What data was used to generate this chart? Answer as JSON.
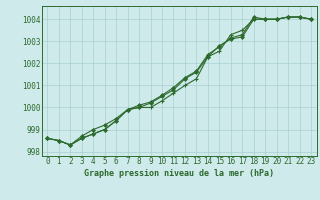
{
  "title": "Graphe pression niveau de la mer (hPa)",
  "background_color": "#ceeaea",
  "grid_color": "#aacfcf",
  "line_color": "#2d6a2d",
  "hours": [
    0,
    1,
    2,
    3,
    4,
    5,
    6,
    7,
    8,
    9,
    10,
    11,
    12,
    13,
    14,
    15,
    16,
    17,
    18,
    19,
    20,
    21,
    22,
    23
  ],
  "series1": [
    998.6,
    998.5,
    998.3,
    998.6,
    998.8,
    999.0,
    999.4,
    999.9,
    1000.0,
    1000.2,
    1000.5,
    1000.8,
    1001.3,
    1001.6,
    1002.3,
    1002.8,
    1003.1,
    1003.2,
    1004.0,
    1004.0,
    1004.0,
    1004.1,
    1004.1,
    1004.0
  ],
  "series2": [
    998.6,
    998.5,
    998.3,
    998.6,
    998.8,
    999.0,
    999.4,
    999.9,
    1000.0,
    1000.0,
    1000.3,
    1000.65,
    1001.0,
    1001.3,
    1002.3,
    1002.55,
    1003.3,
    1003.5,
    1004.0,
    1004.0,
    1004.0,
    1004.1,
    1004.1,
    1004.0
  ],
  "series3": [
    998.6,
    998.5,
    998.3,
    998.7,
    999.0,
    999.2,
    999.5,
    999.9,
    1000.1,
    1000.25,
    1000.55,
    1000.9,
    1001.35,
    1001.65,
    1002.4,
    1002.75,
    1003.15,
    1003.3,
    1004.1,
    1004.0,
    1004.0,
    1004.1,
    1004.1,
    1004.0
  ],
  "ylim": [
    997.8,
    1004.6
  ],
  "yticks": [
    998,
    999,
    1000,
    1001,
    1002,
    1003,
    1004
  ],
  "tick_fontsize": 5.5,
  "label_fontsize": 6.0
}
